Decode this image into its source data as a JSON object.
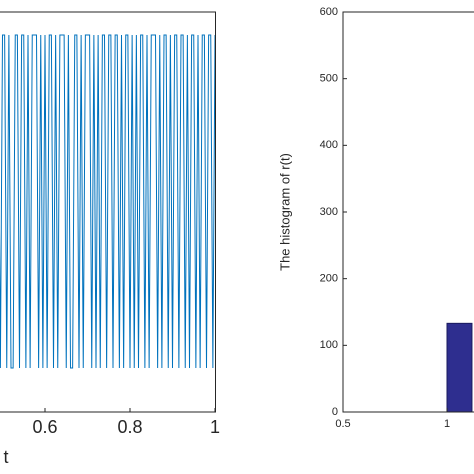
{
  "chart_data": [
    {
      "type": "line",
      "xlabel": "t",
      "color": "#0072bd",
      "x": [
        0.49,
        0.495,
        0.5,
        0.505,
        0.51,
        0.515,
        0.52,
        0.525,
        0.53,
        0.535,
        0.54,
        0.545,
        0.55,
        0.555,
        0.56,
        0.565,
        0.57,
        0.575,
        0.58,
        0.585,
        0.59,
        0.595,
        0.6,
        0.605,
        0.61,
        0.615,
        0.62,
        0.625,
        0.63,
        0.635,
        0.64,
        0.645,
        0.65,
        0.655,
        0.66,
        0.665,
        0.67,
        0.675,
        0.68,
        0.685,
        0.69,
        0.695,
        0.7,
        0.705,
        0.71,
        0.715,
        0.72,
        0.725,
        0.73,
        0.735,
        0.74,
        0.745,
        0.75,
        0.755,
        0.76,
        0.765,
        0.77,
        0.775,
        0.78,
        0.785,
        0.79,
        0.795,
        0.8,
        0.805,
        0.81,
        0.815,
        0.82,
        0.825,
        0.83,
        0.835,
        0.84,
        0.845,
        0.85,
        0.855,
        0.86,
        0.865,
        0.87,
        0.875,
        0.88,
        0.885,
        0.89,
        0.895,
        0.9,
        0.905,
        0.91,
        0.915,
        0.92,
        0.925,
        0.93,
        0.935,
        0.94,
        0.945,
        0.95,
        0.955,
        0.96,
        0.965,
        0.97,
        0.975,
        0.98,
        0.985,
        0.99,
        0.995,
        1
      ],
      "values": [
        2,
        1,
        2,
        2,
        1,
        2,
        1,
        1,
        2,
        2,
        1,
        2,
        2,
        1,
        2,
        1,
        2,
        2,
        2,
        1,
        2,
        1,
        2,
        1,
        2,
        2,
        1,
        2,
        1,
        2,
        2,
        2,
        1,
        2,
        1,
        1,
        2,
        2,
        1,
        2,
        1,
        2,
        2,
        2,
        1,
        2,
        1,
        2,
        1,
        2,
        2,
        1,
        2,
        2,
        1,
        2,
        2,
        1,
        2,
        1,
        2,
        2,
        1,
        2,
        1,
        2,
        1,
        2,
        2,
        1,
        2,
        1,
        2,
        2,
        2,
        1,
        2,
        1,
        2,
        2,
        1,
        2,
        1,
        2,
        2,
        1,
        2,
        2,
        1,
        2,
        1,
        2,
        2,
        1,
        2,
        1,
        2,
        2,
        1,
        2,
        2,
        1,
        2
      ],
      "xlim": [
        0,
        1
      ],
      "ylim": [
        0.868,
        2.069
      ],
      "xticks": [
        0.6,
        0.8,
        1
      ]
    },
    {
      "type": "histogram",
      "ylabel": "The histogram of r(t)",
      "color": "#2e2e8f",
      "bins": [
        1,
        1.12
      ],
      "counts": [
        133
      ],
      "xlim": [
        0.5,
        2.5
      ],
      "ylim": [
        0,
        600
      ],
      "xticks": [
        0.5,
        1
      ],
      "yticks": [
        0,
        100,
        200,
        300,
        400,
        500,
        600
      ]
    }
  ]
}
